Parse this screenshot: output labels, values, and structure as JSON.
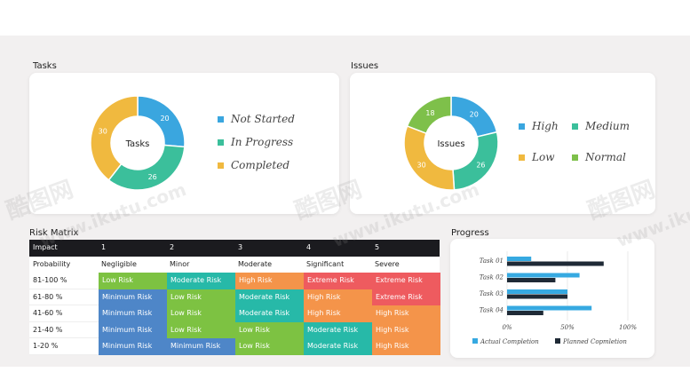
{
  "tasks": {
    "title": "Tasks",
    "center": "Tasks",
    "segments": [
      {
        "label": "Not Started",
        "value": 20,
        "color": "#3aa6df"
      },
      {
        "label": "In Progress",
        "value": 26,
        "color": "#3bbf9b"
      },
      {
        "label": "Completed",
        "value": 30,
        "color": "#f0b93f"
      }
    ]
  },
  "issues": {
    "title": "Issues",
    "center": "Issues",
    "segments": [
      {
        "label": "High",
        "value": 20,
        "color": "#3aa6df"
      },
      {
        "label": "Medium",
        "value": 26,
        "color": "#3bbf9b"
      },
      {
        "label": "Low",
        "value": 30,
        "color": "#f0b93f"
      },
      {
        "label": "Normal",
        "value": 18,
        "color": "#7ec04a"
      }
    ]
  },
  "matrix": {
    "title": "Risk Matrix",
    "head": [
      "Impact",
      "1",
      "2",
      "3",
      "4",
      "5"
    ],
    "sub": [
      "Probability",
      "Negligible",
      "Minor",
      "Moderate",
      "Significant",
      "Severe"
    ],
    "rows": [
      {
        "label": "81-100 %",
        "cells": [
          "Low Risk",
          "Moderate Risk",
          "High Risk",
          "Extreme Risk",
          "Extreme Risk"
        ]
      },
      {
        "label": "61-80 %",
        "cells": [
          "Minimum Risk",
          "Low Risk",
          "Moderate Risk",
          "High Risk",
          "Extreme Risk"
        ]
      },
      {
        "label": "41-60 %",
        "cells": [
          "Minimum Risk",
          "Low Risk",
          "Moderate Risk",
          "High Risk",
          "High Risk"
        ]
      },
      {
        "label": "21-40 %",
        "cells": [
          "Minimum Risk",
          "Low Risk",
          "Low Risk",
          "Moderate Risk",
          "High Risk"
        ]
      },
      {
        "label": "1-20 %",
        "cells": [
          "Minimum Risk",
          "Minimum Risk",
          "Low Risk",
          "Moderate Risk",
          "High Risk"
        ]
      }
    ],
    "colors": {
      "Low Risk": "#7dc242",
      "Moderate Risk": "#27b9a8",
      "High Risk": "#f4944a",
      "Extreme Risk": "#ee5b5f",
      "Minimum Risk": "#4e86c8"
    }
  },
  "progress": {
    "title": "Progress",
    "chart_data": {
      "type": "bar",
      "orientation": "horizontal",
      "categories": [
        "Task 01",
        "Task 02",
        "Task 03",
        "Task 04"
      ],
      "series": [
        {
          "name": "Actual Completion",
          "values": [
            20,
            60,
            50,
            70
          ],
          "color": "#36a9e1"
        },
        {
          "name": "Planned Copmletion",
          "values": [
            80,
            40,
            50,
            30
          ],
          "color": "#1f2a36"
        }
      ],
      "xlim": [
        0,
        100
      ],
      "ticks": [
        "0%",
        "50%",
        "100%"
      ]
    }
  },
  "watermarks": [
    "酷图网",
    "www.ikutu.com",
    "酷图网",
    "www.ikutu.com",
    "酷图网",
    "www.ikutu.com"
  ]
}
